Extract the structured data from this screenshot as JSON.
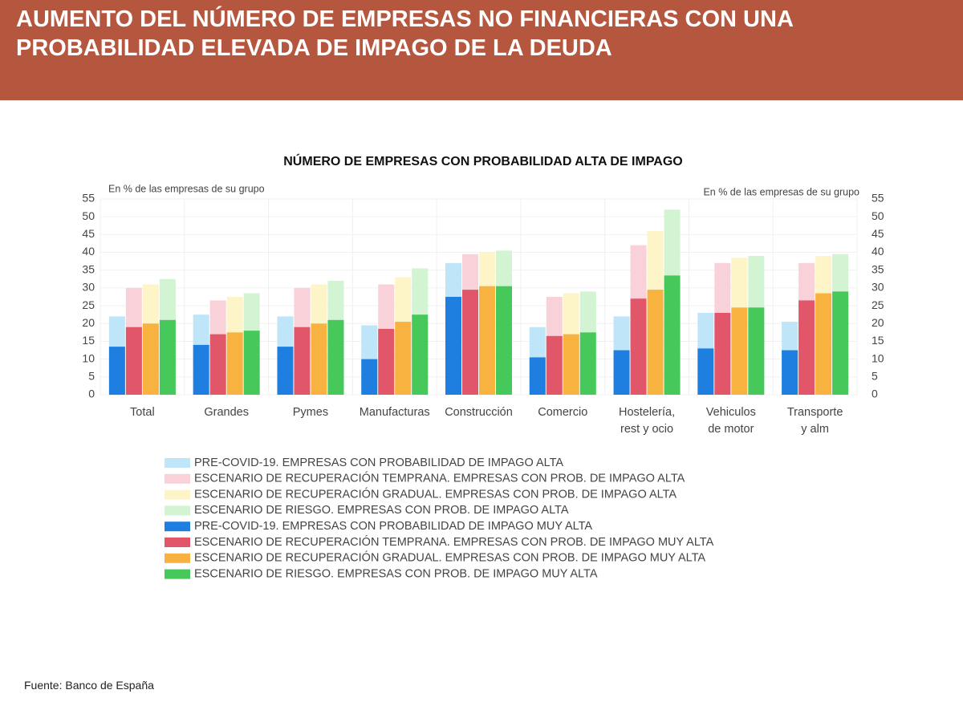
{
  "header": {
    "title": "AUMENTO DEL NÚMERO DE EMPRESAS NO FINANCIERAS CON UNA PROBABILIDAD ELEVADA DE IMPAGO DE LA DEUDA"
  },
  "chart_data": {
    "type": "bar",
    "title": "NÚMERO DE EMPRESAS CON PROBABILIDAD ALTA DE IMPAGO",
    "y_label": "En % de las empresas de su grupo",
    "y2_label": "En % de las empresas de su grupo",
    "categories": [
      "Total",
      "Grandes",
      "Pymes",
      "Manufacturas",
      "Construcción",
      "Comercio",
      "Hostelería,\nrest  y ocio",
      "Vehiculos\nde motor",
      "Transporte\ny alm"
    ],
    "ylim": [
      0,
      55
    ],
    "yticks": [
      0,
      5,
      10,
      15,
      20,
      25,
      30,
      35,
      40,
      45,
      50,
      55
    ],
    "y2lim": [
      0,
      55
    ],
    "y2ticks": [
      0,
      5,
      10,
      15,
      20,
      25,
      30,
      35,
      40,
      45,
      50,
      55
    ],
    "grid": true,
    "series": [
      {
        "name": "PRE-COVID-19. EMPRESAS CON PROBABILIDAD DE IMPAGO ALTA",
        "color": "#bfe5f8",
        "values": [
          22,
          22.5,
          22,
          19.5,
          37,
          19,
          22,
          23,
          20.5
        ]
      },
      {
        "name": "ESCENARIO DE RECUPERACIÓN TEMPRANA. EMPRESAS CON PROB. DE IMPAGO ALTA",
        "color": "#f9d2d9",
        "values": [
          30,
          26.5,
          30,
          31,
          39.5,
          27.5,
          42,
          37,
          37
        ]
      },
      {
        "name": "ESCENARIO DE RECUPERACIÓN GRADUAL. EMPRESAS CON PROB. DE IMPAGO ALTA",
        "color": "#fdf5c8",
        "values": [
          31,
          27.5,
          31,
          33,
          40,
          28.5,
          46,
          38.5,
          39
        ]
      },
      {
        "name": "ESCENARIO DE RIESGO. EMPRESAS CON PROB. DE IMPAGO ALTA",
        "color": "#d3f4d3",
        "values": [
          32.5,
          28.5,
          32,
          35.5,
          40.5,
          29,
          52,
          39,
          39.5
        ]
      },
      {
        "name": "PRE-COVID-19. EMPRESAS CON PROBABILIDAD DE IMPAGO MUY ALTA",
        "color": "#1f7fe0",
        "values": [
          13.5,
          14,
          13.5,
          10,
          27.5,
          10.5,
          12.5,
          13,
          12.5
        ]
      },
      {
        "name": "ESCENARIO DE RECUPERACIÓN TEMPRANA. EMPRESAS CON PROB. DE IMPAGO MUY ALTA",
        "color": "#e2566a",
        "values": [
          19,
          17,
          19,
          18.5,
          29.5,
          16.5,
          27,
          23,
          26.5
        ]
      },
      {
        "name": "ESCENARIO DE RECUPERACIÓN GRADUAL. EMPRESAS CON PROB. DE IMPAGO MUY ALTA",
        "color": "#f8b23f",
        "values": [
          20,
          17.5,
          20,
          20.5,
          30.5,
          17,
          29.5,
          24.5,
          28.5
        ]
      },
      {
        "name": "ESCENARIO DE RIESGO. EMPRESAS CON PROB. DE IMPAGO MUY ALTA",
        "color": "#46c95a",
        "values": [
          21,
          18,
          21,
          22.5,
          30.5,
          17.5,
          33.5,
          24.5,
          29
        ]
      }
    ]
  },
  "footer": {
    "source": "Fuente: Banco de España"
  }
}
